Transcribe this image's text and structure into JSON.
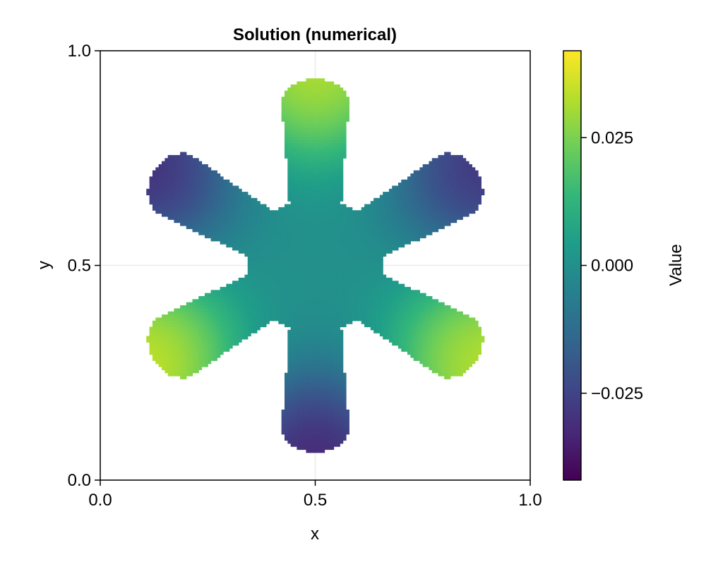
{
  "chart_data": {
    "type": "heatmap",
    "title": "Solution (numerical)",
    "xlabel": "x",
    "ylabel": "y",
    "xlim": [
      0.0,
      1.0
    ],
    "ylim": [
      0.0,
      1.0
    ],
    "x_ticks": [
      0.0,
      0.5,
      1.0
    ],
    "y_ticks": [
      0.0,
      0.5,
      1.0
    ],
    "x_tick_labels": [
      "0.0",
      "0.5",
      "1.0"
    ],
    "y_tick_labels": [
      "0.0",
      "0.5",
      "1.0"
    ],
    "grid": true,
    "domain_shape": {
      "kind": "six-petal flower",
      "center": [
        0.5,
        0.5
      ],
      "petals": 6,
      "petal_angles_deg": [
        90,
        30,
        -30,
        -90,
        -150,
        150
      ],
      "petal_tip_radius": 0.435,
      "inner_radius": 0.15
    },
    "field": {
      "description": "approximately linear in y, offset by petal position",
      "value_at_top_tip": 0.038,
      "value_at_bottom_tip": -0.039,
      "value_at_center": 0.0,
      "value_at_upper_left_tip": -0.036,
      "value_at_upper_right_tip": -0.034,
      "value_at_lower_left_tip": 0.041,
      "value_at_lower_right_tip": 0.039
    },
    "colorbar": {
      "label": "Value",
      "colormap": "viridis",
      "range": [
        -0.042,
        0.042
      ],
      "ticks": [
        -0.025,
        0.0,
        0.025
      ],
      "tick_labels": [
        "−0.025",
        "0.000",
        "0.025"
      ],
      "colors": [
        "#440154",
        "#482878",
        "#3e4a89",
        "#31688e",
        "#26828e",
        "#1f9e89",
        "#35b779",
        "#6ece58",
        "#b5de2b",
        "#fde725"
      ]
    }
  }
}
